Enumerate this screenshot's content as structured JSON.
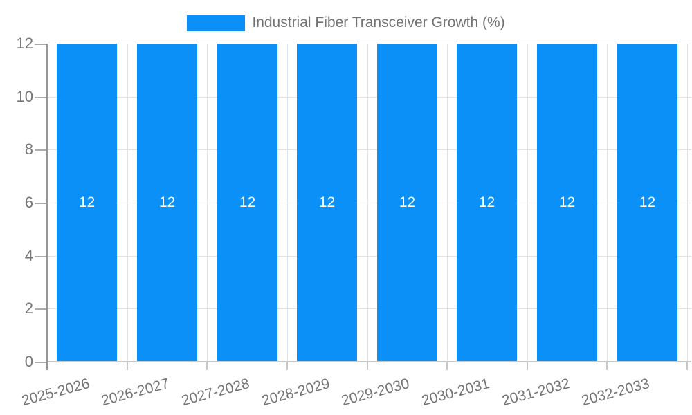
{
  "chart_data": {
    "type": "bar",
    "title": "Industrial Fiber Transceiver Growth (%)",
    "categories": [
      "2025-2026",
      "2026-2027",
      "2027-2028",
      "2028-2029",
      "2029-2030",
      "2030-2031",
      "2031-2032",
      "2032-2033"
    ],
    "values": [
      12,
      12,
      12,
      12,
      12,
      12,
      12,
      12
    ],
    "bar_labels": [
      "12",
      "12",
      "12",
      "12",
      "12",
      "12",
      "12",
      "12"
    ],
    "xlabel": "",
    "ylabel": "",
    "ylim": [
      0,
      12
    ],
    "y_ticks": [
      0,
      2,
      4,
      6,
      8,
      10,
      12
    ],
    "grid": "on",
    "legend_position": "top-center",
    "colors": {
      "bar": "#0b90f7",
      "bar_label": "#ffffff",
      "tick_text": "#757575",
      "legend_text": "#737373",
      "gridline": "#e2e2e2",
      "y_axis_line": "#969696",
      "x_axis_line": "#c9c9c9"
    }
  }
}
